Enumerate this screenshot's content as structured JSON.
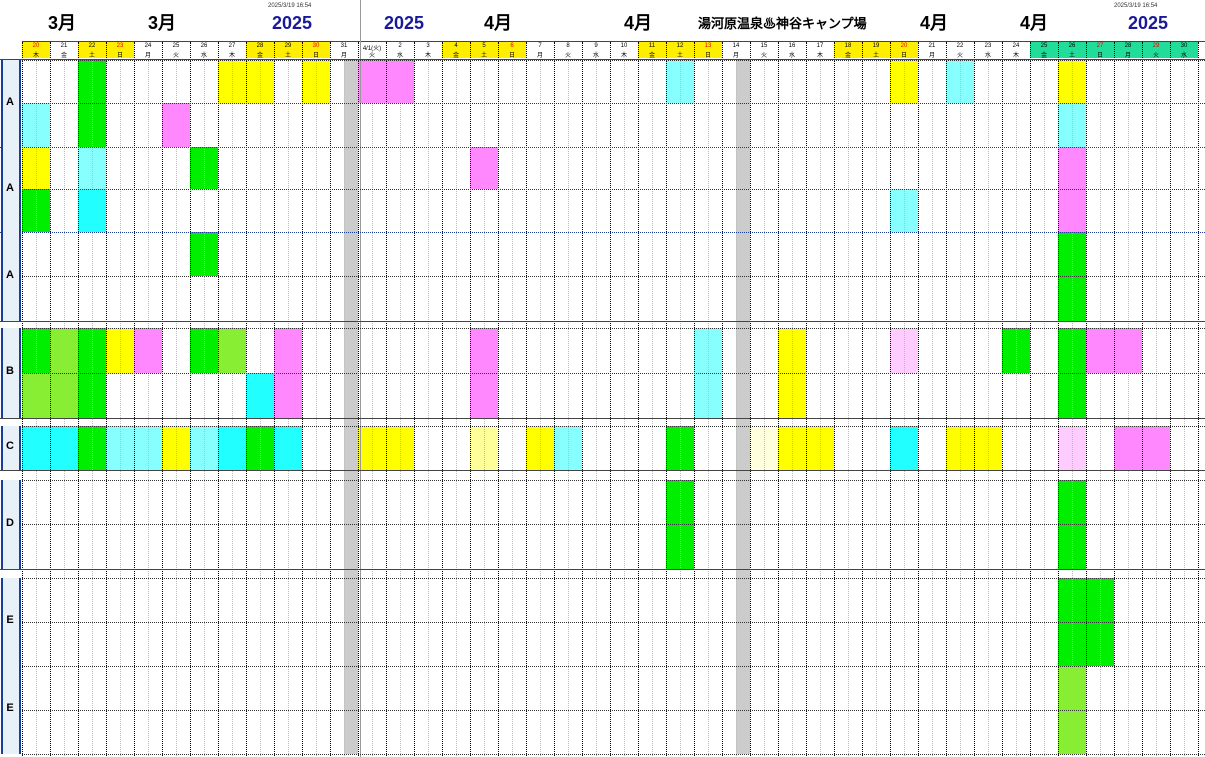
{
  "header": {
    "timestamp_left": "2025/3/19 16:54",
    "timestamp_right": "2025/3/19 16:54",
    "title": "湯河原温泉♨神谷キャンプ場",
    "banners": [
      {
        "text": "3月",
        "color": "#000000"
      },
      {
        "text": "3月",
        "color": "#000000"
      },
      {
        "text": "2025",
        "color": "#1a1a99"
      },
      {
        "text": "2025",
        "color": "#1a1a99"
      },
      {
        "text": "4月",
        "color": "#000000"
      },
      {
        "text": "4月",
        "color": "#000000"
      },
      {
        "text": "4月",
        "color": "#000000"
      },
      {
        "text": "4月",
        "color": "#000000"
      },
      {
        "text": "2025",
        "color": "#1a1a99"
      }
    ]
  },
  "days": [
    {
      "d": "20",
      "w": "木",
      "bg": "yellow",
      "red": true
    },
    {
      "d": "21",
      "w": "金",
      "bg": "",
      "red": false
    },
    {
      "d": "22",
      "w": "土",
      "bg": "yellow",
      "red": false
    },
    {
      "d": "23",
      "w": "日",
      "bg": "yellow",
      "red": true
    },
    {
      "d": "24",
      "w": "月",
      "bg": "",
      "red": false
    },
    {
      "d": "25",
      "w": "火",
      "bg": "",
      "red": false
    },
    {
      "d": "26",
      "w": "水",
      "bg": "",
      "red": false
    },
    {
      "d": "27",
      "w": "木",
      "bg": "",
      "red": false
    },
    {
      "d": "28",
      "w": "金",
      "bg": "yellow",
      "red": false
    },
    {
      "d": "29",
      "w": "土",
      "bg": "yellow",
      "red": false
    },
    {
      "d": "30",
      "w": "日",
      "bg": "yellow",
      "red": true
    },
    {
      "d": "31",
      "w": "月",
      "bg": "",
      "red": false
    },
    {
      "d": "4/1(火)",
      "w": "火",
      "bg": "",
      "red": false
    },
    {
      "d": "2",
      "w": "水",
      "bg": "",
      "red": false
    },
    {
      "d": "3",
      "w": "木",
      "bg": "",
      "red": false
    },
    {
      "d": "4",
      "w": "金",
      "bg": "yellow",
      "red": false
    },
    {
      "d": "5",
      "w": "土",
      "bg": "yellow",
      "red": false
    },
    {
      "d": "6",
      "w": "日",
      "bg": "yellow",
      "red": true
    },
    {
      "d": "7",
      "w": "月",
      "bg": "",
      "red": false
    },
    {
      "d": "8",
      "w": "火",
      "bg": "",
      "red": false
    },
    {
      "d": "9",
      "w": "水",
      "bg": "",
      "red": false
    },
    {
      "d": "10",
      "w": "木",
      "bg": "",
      "red": false
    },
    {
      "d": "11",
      "w": "金",
      "bg": "yellow",
      "red": false
    },
    {
      "d": "12",
      "w": "土",
      "bg": "yellow",
      "red": false
    },
    {
      "d": "13",
      "w": "日",
      "bg": "yellow",
      "red": true
    },
    {
      "d": "14",
      "w": "月",
      "bg": "",
      "red": false
    },
    {
      "d": "15",
      "w": "火",
      "bg": "",
      "red": false
    },
    {
      "d": "16",
      "w": "水",
      "bg": "",
      "red": false
    },
    {
      "d": "17",
      "w": "木",
      "bg": "",
      "red": false
    },
    {
      "d": "18",
      "w": "金",
      "bg": "yellow",
      "red": false
    },
    {
      "d": "19",
      "w": "土",
      "bg": "yellow",
      "red": false
    },
    {
      "d": "20",
      "w": "日",
      "bg": "yellow",
      "red": true
    },
    {
      "d": "21",
      "w": "月",
      "bg": "",
      "red": false
    },
    {
      "d": "22",
      "w": "火",
      "bg": "",
      "red": false
    },
    {
      "d": "23",
      "w": "水",
      "bg": "",
      "red": false
    },
    {
      "d": "24",
      "w": "木",
      "bg": "",
      "red": false
    },
    {
      "d": "25",
      "w": "金",
      "bg": "teal",
      "red": false
    },
    {
      "d": "26",
      "w": "土",
      "bg": "teal",
      "red": false
    },
    {
      "d": "27",
      "w": "日",
      "bg": "teal",
      "red": true
    },
    {
      "d": "28",
      "w": "月",
      "bg": "teal",
      "red": false
    },
    {
      "d": "29",
      "w": "火",
      "bg": "teal",
      "red": true
    },
    {
      "d": "30",
      "w": "水",
      "bg": "teal",
      "red": false
    }
  ],
  "sections": [
    {
      "label": "A"
    },
    {
      "label": "A"
    },
    {
      "label": "A"
    },
    {
      "label": "B"
    },
    {
      "label": "C"
    },
    {
      "label": "D"
    },
    {
      "label": "E"
    },
    {
      "label": "E"
    }
  ],
  "colors": {
    "green": "#00ee00",
    "yellow": "#ffff00",
    "cyan": "#22ffff",
    "lcyan": "#88ffff",
    "pink": "#ff88ff",
    "lpink": "#ffccff",
    "lgreen": "#88ee33",
    "lyellow": "#ffff99",
    "cream": "#ffffdd",
    "gray": "#cccccc",
    "headerYellow": "#ffee00",
    "headerTeal": "#22dd99",
    "sectionBlue": "#1a3d99"
  }
}
